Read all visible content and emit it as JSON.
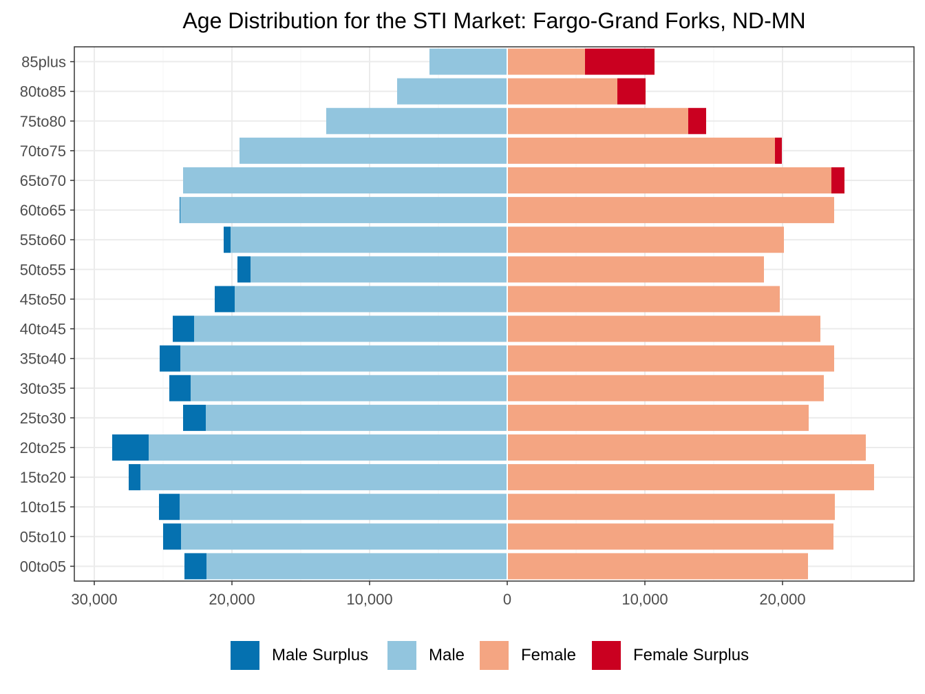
{
  "chart_data": {
    "type": "bar",
    "orientation": "horizontal",
    "layout": "population-pyramid",
    "title": "Age Distribution for the STI Market: Fargo-Grand Forks, ND-MN",
    "xlabel": "",
    "ylabel": "",
    "xlim": [
      -30000,
      30000
    ],
    "x_ticks": [
      -30000,
      -20000,
      -10000,
      0,
      10000,
      20000
    ],
    "x_tick_labels": [
      "30,000",
      "20,000",
      "10,000",
      "0",
      "10,000",
      "20,000"
    ],
    "grid": true,
    "legend_position": "bottom",
    "categories": [
      "85plus",
      "80to85",
      "75to80",
      "70to75",
      "65to70",
      "60to65",
      "55to60",
      "50to55",
      "45to50",
      "40to45",
      "35to40",
      "30to35",
      "25to30",
      "20to25",
      "15to20",
      "10to15",
      "05to10",
      "00to05"
    ],
    "series": [
      {
        "name": "Male Surplus",
        "color": "#0571B0",
        "side": "left",
        "values": [
          0,
          0,
          0,
          0,
          0,
          50,
          500,
          950,
          1450,
          1550,
          1500,
          1550,
          1650,
          2650,
          850,
          1500,
          1300,
          1600
        ]
      },
      {
        "name": "Male",
        "color": "#92C5DE",
        "side": "left",
        "values": [
          5650,
          8000,
          13150,
          19450,
          23550,
          23750,
          20100,
          18650,
          19800,
          22750,
          23750,
          23000,
          21900,
          26050,
          26650,
          23800,
          23700,
          21850
        ]
      },
      {
        "name": "Female",
        "color": "#F4A582",
        "side": "right",
        "values": [
          5650,
          8000,
          13150,
          19450,
          23550,
          23750,
          20100,
          18650,
          19800,
          22750,
          23750,
          23000,
          21900,
          26050,
          26650,
          23800,
          23700,
          21850
        ]
      },
      {
        "name": "Female Surplus",
        "color": "#CA0020",
        "side": "right",
        "values": [
          5050,
          2050,
          1300,
          500,
          950,
          0,
          0,
          0,
          0,
          0,
          0,
          0,
          0,
          0,
          0,
          0,
          0,
          0
        ]
      }
    ]
  }
}
